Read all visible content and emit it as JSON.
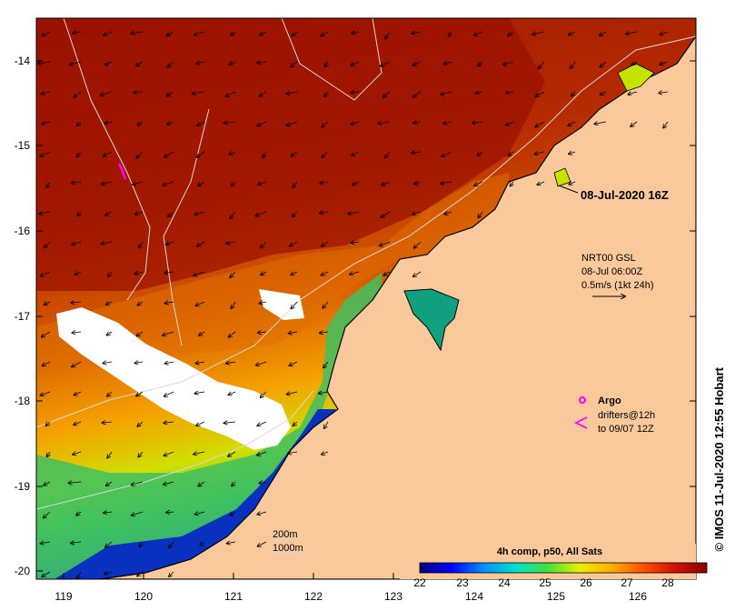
{
  "map": {
    "x_ticks": [
      "119",
      "120",
      "121",
      "122",
      "123",
      "124",
      "125",
      "126"
    ],
    "y_ticks": [
      "-14",
      "-15",
      "-16",
      "-17",
      "-18",
      "-19",
      "-20"
    ],
    "timestamp_label": "08-Jul-2020 16Z"
  },
  "current_legend": {
    "source": "NRT00 GSL",
    "date": "08-Jul 06:00Z",
    "scale": "0.5m/s (1kt 24h)"
  },
  "markers_legend": {
    "argo": "Argo",
    "drifters_line1": "drifters@12h",
    "drifters_line2": "to 09/07 12Z",
    "argo_color": "#ff00ff"
  },
  "depth_legend": {
    "contour_200": "200m",
    "contour_1000": "1000m"
  },
  "colorbar": {
    "title": "4h comp, p50, All Sats",
    "ticks": [
      "22",
      "23",
      "24",
      "25",
      "26",
      "27",
      "28"
    ],
    "stops": [
      "#00007a",
      "#0000ff",
      "#0090ff",
      "#00e0d0",
      "#40e040",
      "#e8f000",
      "#ffb000",
      "#ff5000",
      "#d01000",
      "#8a0000"
    ]
  },
  "credit": "© IMOS 11-Jul-2020 12:55 Hobart",
  "colors": {
    "land": "#f9c89b",
    "ocean_warm": "#b22200",
    "ocean_cold": "#0c2aa0"
  }
}
